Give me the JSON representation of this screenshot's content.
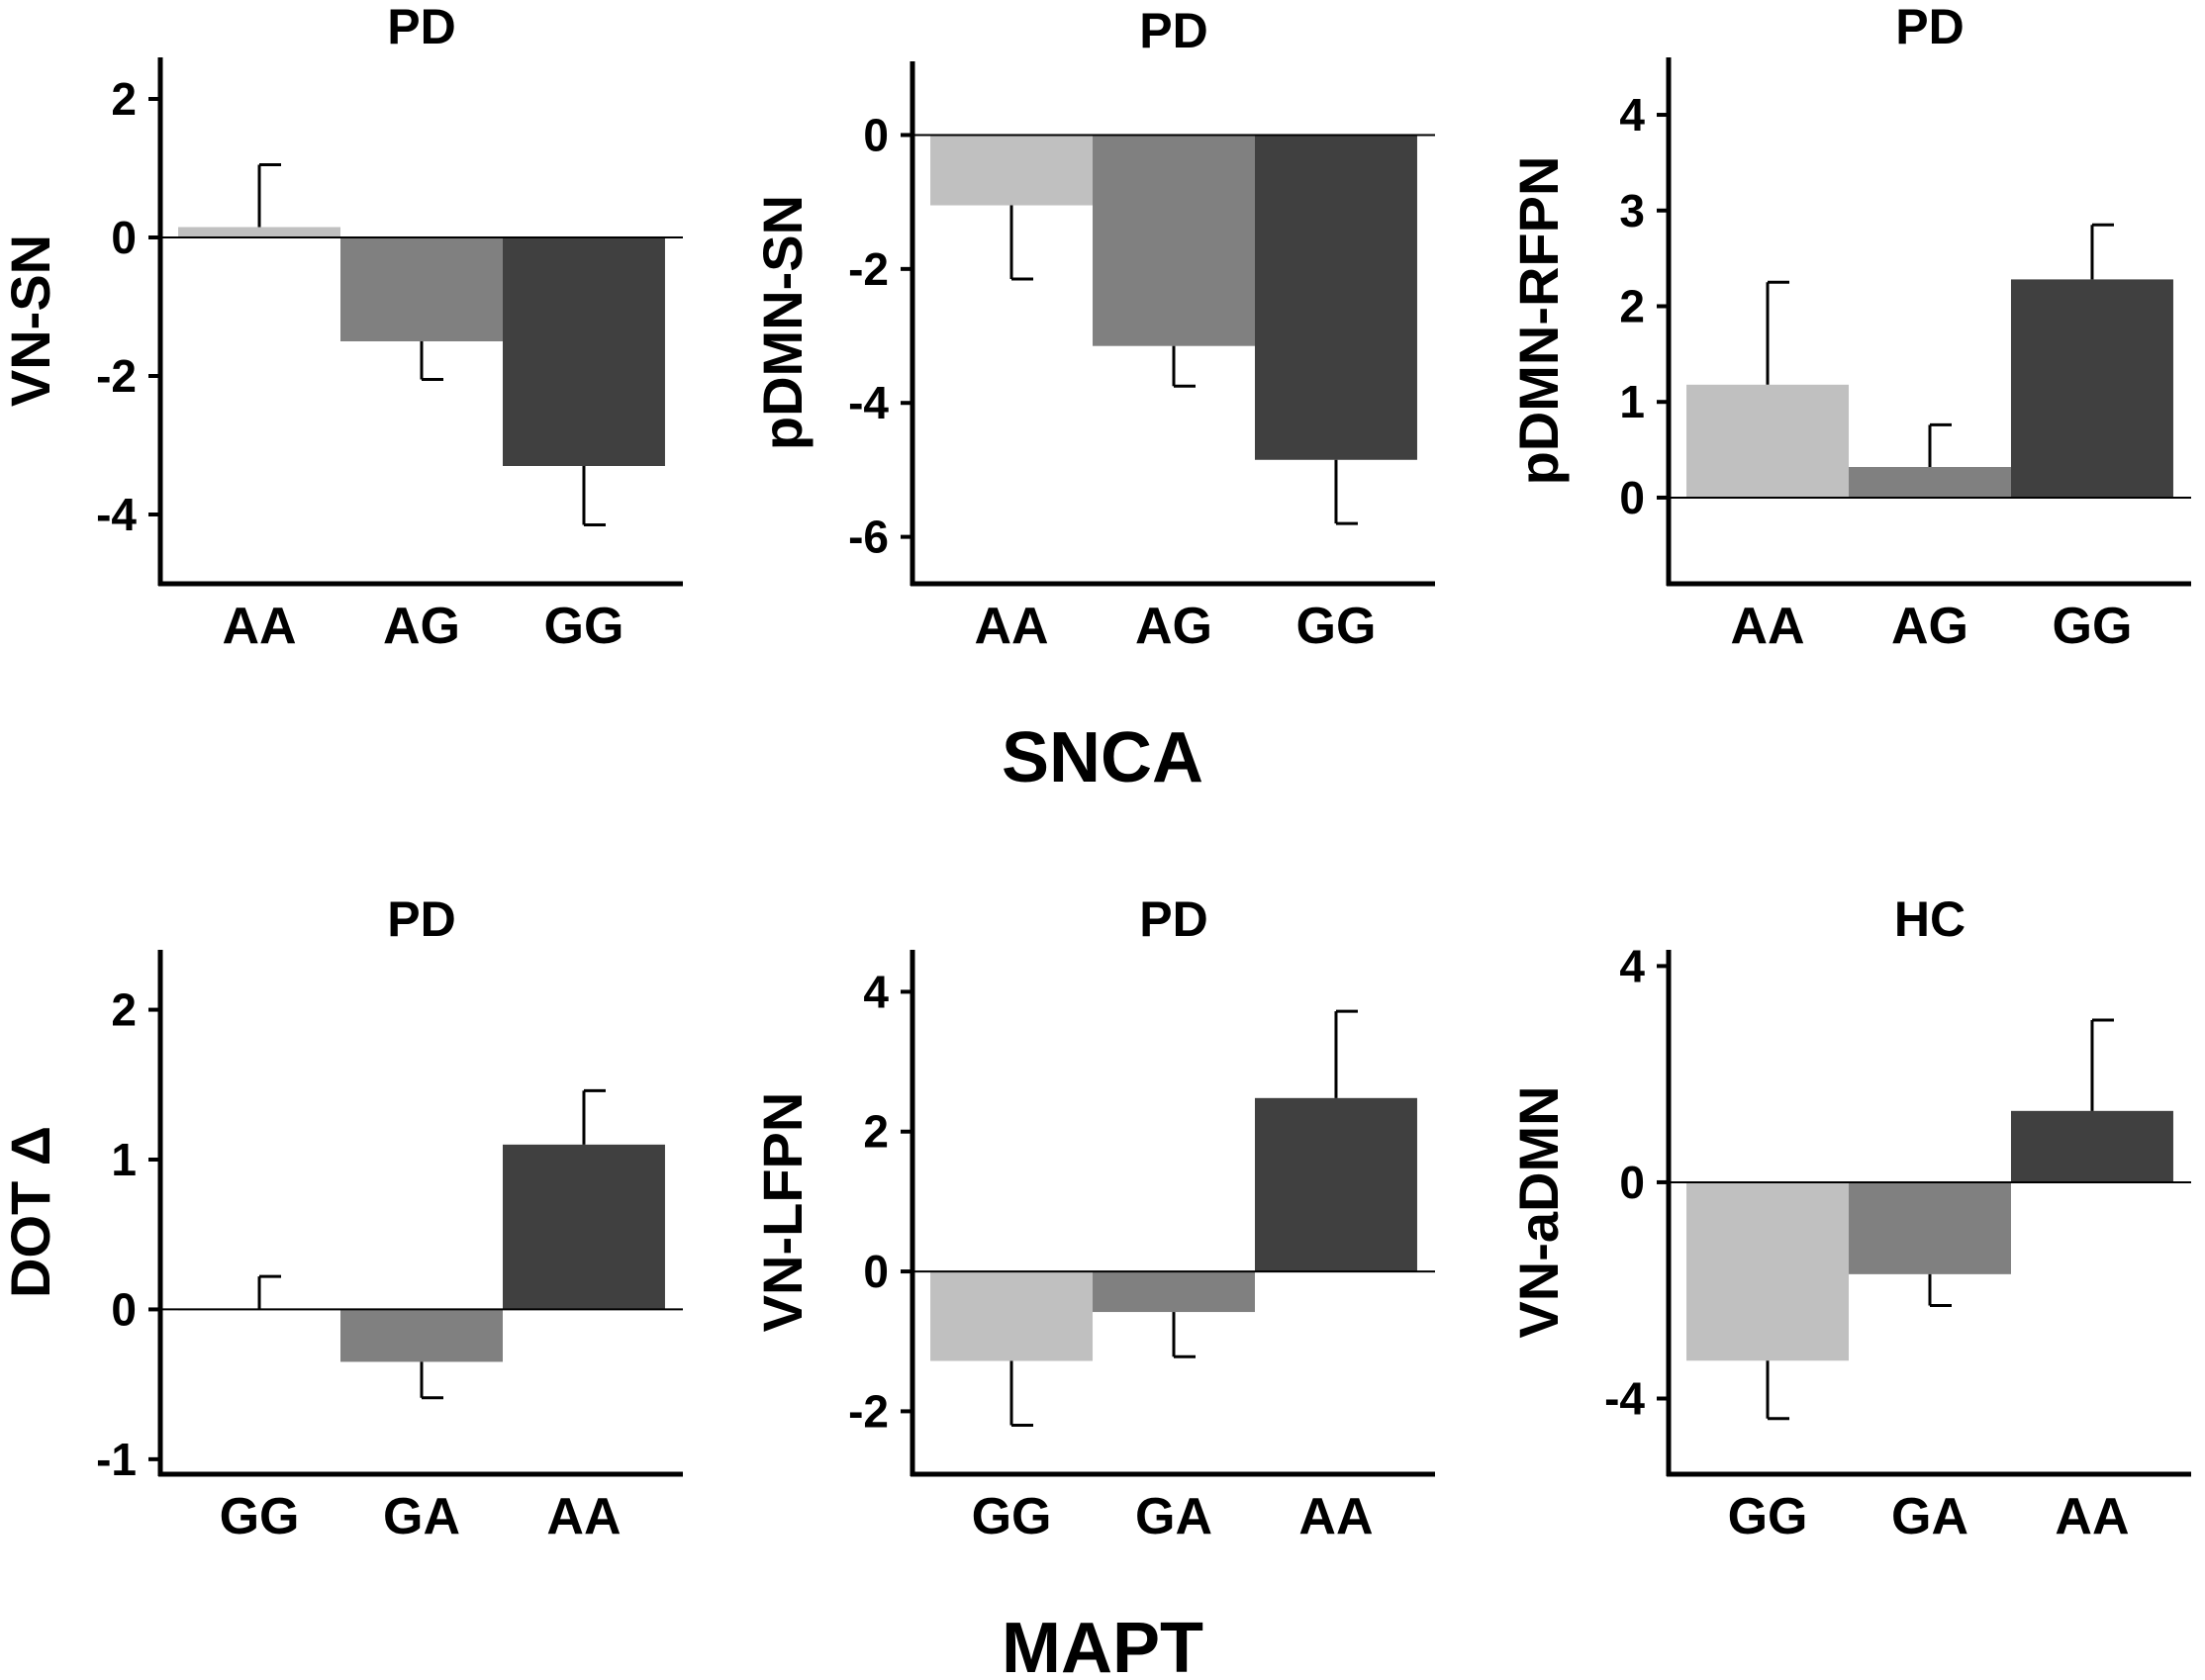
{
  "figure": {
    "group_labels": [
      "SNCA",
      "MAPT"
    ]
  },
  "chart_data": [
    {
      "type": "bar",
      "group": "SNCA",
      "title": "PD",
      "ylabel": "VN-SN",
      "categories": [
        "AA",
        "AG",
        "GG"
      ],
      "values": [
        0.15,
        -1.5,
        -3.3
      ],
      "errors": [
        0.9,
        0.55,
        0.85
      ],
      "colors": [
        "#c0c0c0",
        "#808080",
        "#404040"
      ],
      "ylim": [
        -5,
        2.6
      ],
      "yticks": [
        -4,
        -2,
        0,
        2
      ],
      "ytick_labels": [
        "-4",
        "-2",
        "0",
        "2"
      ]
    },
    {
      "type": "bar",
      "group": "SNCA",
      "title": "PD",
      "ylabel": "pDMN-SN",
      "categories": [
        "AA",
        "AG",
        "GG"
      ],
      "values": [
        -1.05,
        -3.15,
        -4.85
      ],
      "errors": [
        1.1,
        0.6,
        0.95
      ],
      "colors": [
        "#c0c0c0",
        "#808080",
        "#404040"
      ],
      "ylim": [
        -6.7,
        1.1
      ],
      "yticks": [
        -6,
        -4,
        -2,
        0
      ],
      "ytick_labels": [
        "-6",
        "-4",
        "-2",
        "0"
      ]
    },
    {
      "type": "bar",
      "group": "SNCA",
      "title": "PD",
      "ylabel": "pDMN-RFPN",
      "categories": [
        "AA",
        "AG",
        "GG"
      ],
      "values": [
        1.18,
        0.32,
        2.28
      ],
      "errors": [
        1.07,
        0.44,
        0.57
      ],
      "colors": [
        "#c0c0c0",
        "#808080",
        "#404040"
      ],
      "ylim": [
        -0.9,
        4.6
      ],
      "yticks": [
        0,
        1,
        2,
        3,
        4
      ],
      "ytick_labels": [
        "0",
        "1",
        "2",
        "3",
        "4"
      ]
    },
    {
      "type": "bar",
      "group": "MAPT",
      "title": "PD",
      "ylabel": "DOT Δ",
      "categories": [
        "GG",
        "GA",
        "AA"
      ],
      "values": [
        0.0,
        -0.35,
        1.1
      ],
      "errors": [
        0.22,
        0.24,
        0.36
      ],
      "colors": [
        "#c0c0c0",
        "#808080",
        "#404040"
      ],
      "ylim": [
        -1.1,
        2.4
      ],
      "yticks": [
        -1,
        0,
        1,
        2
      ],
      "ytick_labels": [
        "-1",
        "0",
        "1",
        "2"
      ]
    },
    {
      "type": "bar",
      "group": "MAPT",
      "title": "PD",
      "ylabel": "VN-LFPN",
      "categories": [
        "GG",
        "GA",
        "AA"
      ],
      "values": [
        -1.28,
        -0.58,
        2.48
      ],
      "errors": [
        0.92,
        0.64,
        1.24
      ],
      "colors": [
        "#c0c0c0",
        "#808080",
        "#404040"
      ],
      "ylim": [
        -2.9,
        4.6
      ],
      "yticks": [
        -2,
        0,
        2,
        4
      ],
      "ytick_labels": [
        "-2",
        "0",
        "2",
        "4"
      ]
    },
    {
      "type": "bar",
      "group": "MAPT",
      "title": "HC",
      "ylabel": "VN-aDMN",
      "categories": [
        "GG",
        "GA",
        "AA"
      ],
      "values": [
        -3.3,
        -1.7,
        1.32
      ],
      "errors": [
        1.07,
        0.58,
        1.68
      ],
      "colors": [
        "#c0c0c0",
        "#808080",
        "#404040"
      ],
      "ylim": [
        -5.4,
        4.3
      ],
      "yticks": [
        -4,
        0,
        4
      ],
      "ytick_labels": [
        "-4",
        "0",
        "4"
      ]
    }
  ]
}
